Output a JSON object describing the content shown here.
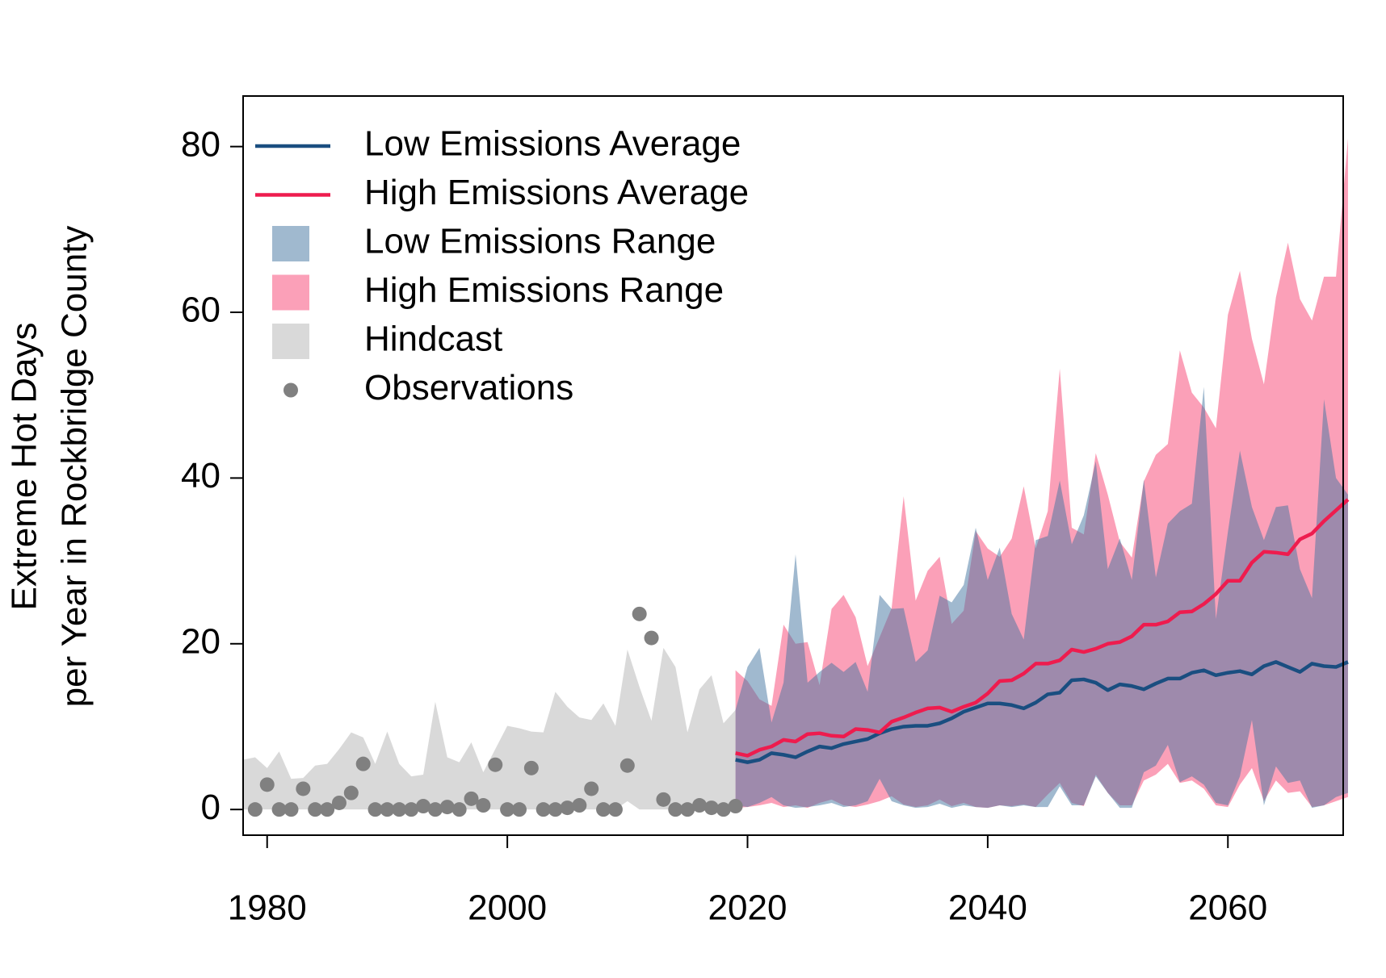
{
  "chart_data": {
    "type": "line",
    "ylabel": [
      "Extreme Hot Days",
      "per Year in Rockbridge County"
    ],
    "xlim": [
      1978,
      2069.6
    ],
    "ylim": [
      -3.1,
      86.1
    ],
    "xticks": [
      1980,
      2000,
      2020,
      2040,
      2060
    ],
    "yticks": [
      0,
      20,
      40,
      60,
      80
    ],
    "legend": "topleft",
    "series": [
      {
        "name": "Hindcast",
        "kind": "band",
        "color": "#d9d9d9",
        "x": [
          1978,
          1979,
          1980,
          1981,
          1982,
          1983,
          1984,
          1985,
          1986,
          1987,
          1988,
          1989,
          1990,
          1991,
          1992,
          1993,
          1994,
          1995,
          1996,
          1997,
          1998,
          1999,
          2000,
          2001,
          2002,
          2003,
          2004,
          2005,
          2006,
          2007,
          2008,
          2009,
          2010,
          2011,
          2012,
          2013,
          2014,
          2015,
          2016,
          2017,
          2018,
          2019
        ],
        "upper": [
          6,
          6.3,
          5,
          7,
          3.7,
          3.8,
          5.3,
          5.5,
          7.3,
          9.3,
          8.7,
          5.5,
          9.4,
          5.5,
          4,
          4.2,
          13,
          6.3,
          5.7,
          8.1,
          4.5,
          7.3,
          10.1,
          9.8,
          9.4,
          9.3,
          14.2,
          12.4,
          11.1,
          10.8,
          12.8,
          10.1,
          19.3,
          14.8,
          10.7,
          19.5,
          17.2,
          9.3,
          14.5,
          16.2,
          10.4,
          12
        ],
        "lower": [
          0,
          0,
          0,
          0,
          0,
          0,
          0,
          0,
          0,
          0,
          0,
          0,
          0,
          0,
          0,
          0,
          0,
          0,
          0,
          0,
          0,
          0,
          0,
          0,
          0,
          0,
          0,
          0,
          0,
          0,
          0,
          0,
          1,
          0,
          0,
          0,
          0,
          0,
          0,
          0,
          0,
          0
        ]
      },
      {
        "name": "High Emissions Range",
        "kind": "band",
        "color": "#fba0b8",
        "x": [
          2019,
          2020,
          2021,
          2022,
          2023,
          2024,
          2025,
          2026,
          2027,
          2028,
          2029,
          2030,
          2031,
          2032,
          2033,
          2034,
          2035,
          2036,
          2037,
          2038,
          2039,
          2040,
          2041,
          2042,
          2043,
          2044,
          2045,
          2046,
          2047,
          2048,
          2049,
          2050,
          2051,
          2052,
          2053,
          2054,
          2055,
          2056,
          2057,
          2058,
          2059,
          2060,
          2061,
          2062,
          2063,
          2064,
          2065,
          2066,
          2067,
          2068,
          2069,
          2070
        ],
        "upper": [
          16.8,
          15.5,
          13.3,
          12.5,
          22.3,
          20,
          20.2,
          15,
          24.2,
          25.9,
          23.2,
          17.3,
          20.8,
          24.3,
          37.8,
          25.2,
          28.8,
          30.5,
          22.4,
          24,
          33.6,
          31.5,
          30.5,
          32.7,
          39,
          31.5,
          36,
          53.2,
          34,
          33.2,
          43,
          38,
          32.3,
          30.4,
          39.6,
          42.8,
          44.1,
          55.4,
          50.3,
          48.5,
          46,
          59.7,
          65,
          56.8,
          51.3,
          61.8,
          68.4,
          61.6,
          59,
          64.3,
          64.3,
          81
        ],
        "lower": [
          0.2,
          0.3,
          0.5,
          0.8,
          0.3,
          0.5,
          0.2,
          0.8,
          1.2,
          0.5,
          0.3,
          0.6,
          1,
          1.6,
          0.6,
          0.3,
          0.5,
          1.2,
          0.4,
          0.8,
          0.3,
          0.2,
          0.5,
          0.4,
          0.6,
          0.3,
          1.8,
          3.2,
          0.8,
          0.4,
          4.2,
          2,
          0.5,
          0.5,
          3.5,
          4.2,
          5.5,
          3.2,
          3.5,
          2.5,
          0.5,
          0.3,
          3,
          5,
          1,
          3.5,
          2,
          2.2,
          0.3,
          0.5,
          1,
          1.5
        ]
      },
      {
        "name": "Low Emissions Range",
        "kind": "band",
        "color": "#41739f",
        "opacity": 0.5,
        "x": [
          2019,
          2020,
          2021,
          2022,
          2023,
          2024,
          2025,
          2026,
          2027,
          2028,
          2029,
          2030,
          2031,
          2032,
          2033,
          2034,
          2035,
          2036,
          2037,
          2038,
          2039,
          2040,
          2041,
          2042,
          2043,
          2044,
          2045,
          2046,
          2047,
          2048,
          2049,
          2050,
          2051,
          2052,
          2053,
          2054,
          2055,
          2056,
          2057,
          2058,
          2059,
          2060,
          2061,
          2062,
          2063,
          2064,
          2065,
          2066,
          2067,
          2068,
          2069,
          2070
        ],
        "upper": [
          12,
          17.2,
          19.5,
          10.5,
          15.3,
          30.8,
          15.3,
          16.6,
          17.7,
          16.6,
          17.8,
          14.2,
          25.9,
          24.2,
          24.3,
          17.8,
          19.2,
          25.8,
          25,
          27.1,
          34,
          27.7,
          31.6,
          23.6,
          20.5,
          32.5,
          33,
          39.7,
          32,
          35.5,
          42,
          29,
          32.7,
          27.7,
          39.8,
          28,
          34.5,
          36,
          36.9,
          51,
          23,
          33.5,
          43.3,
          36.5,
          32.5,
          36.5,
          36.7,
          29,
          25.5,
          49.5,
          40,
          38
        ],
        "lower": [
          0.5,
          0.3,
          0.8,
          1.5,
          0.5,
          0.2,
          0.3,
          0.5,
          0.8,
          0.3,
          0.5,
          1,
          3.7,
          1,
          0.5,
          0.2,
          0.3,
          0.7,
          0.2,
          0.5,
          0.3,
          0.2,
          0.5,
          0.3,
          0.5,
          0.3,
          0.3,
          2.8,
          0.5,
          0.5,
          4,
          2,
          0.2,
          0.2,
          4.5,
          5.3,
          7.8,
          3.3,
          4,
          3,
          0.8,
          0.5,
          4,
          10.8,
          0.5,
          5.2,
          3.2,
          3.5,
          0.2,
          0.5,
          1.5,
          2
        ]
      },
      {
        "name": "Low Emissions Average",
        "kind": "line",
        "color": "#1a4e80",
        "x": [
          2019,
          2020,
          2021,
          2022,
          2023,
          2024,
          2025,
          2026,
          2027,
          2028,
          2029,
          2030,
          2031,
          2032,
          2033,
          2034,
          2035,
          2036,
          2037,
          2038,
          2039,
          2040,
          2041,
          2042,
          2043,
          2044,
          2045,
          2046,
          2047,
          2048,
          2049,
          2050,
          2051,
          2052,
          2053,
          2054,
          2055,
          2056,
          2057,
          2058,
          2059,
          2060,
          2061,
          2062,
          2063,
          2064,
          2065,
          2066,
          2067,
          2068,
          2069,
          2070
        ],
        "values": [
          6,
          5.7,
          6,
          6.8,
          6.6,
          6.3,
          7,
          7.6,
          7.4,
          7.9,
          8.2,
          8.5,
          9.2,
          9.7,
          10,
          10.1,
          10.1,
          10.4,
          11,
          11.8,
          12.3,
          12.8,
          12.8,
          12.6,
          12.2,
          12.9,
          13.9,
          14.1,
          15.6,
          15.7,
          15.3,
          14.4,
          15.1,
          14.9,
          14.5,
          15.2,
          15.8,
          15.8,
          16.5,
          16.8,
          16.2,
          16.5,
          16.7,
          16.3,
          17.3,
          17.8,
          17.2,
          16.6,
          17.6,
          17.3,
          17.2,
          17.8
        ]
      },
      {
        "name": "High Emissions Average",
        "kind": "line",
        "color": "#ee1c4e",
        "x": [
          2019,
          2020,
          2021,
          2022,
          2023,
          2024,
          2025,
          2026,
          2027,
          2028,
          2029,
          2030,
          2031,
          2032,
          2033,
          2034,
          2035,
          2036,
          2037,
          2038,
          2039,
          2040,
          2041,
          2042,
          2043,
          2044,
          2045,
          2046,
          2047,
          2048,
          2049,
          2050,
          2051,
          2052,
          2053,
          2054,
          2055,
          2056,
          2057,
          2058,
          2059,
          2060,
          2061,
          2062,
          2063,
          2064,
          2065,
          2066,
          2067,
          2068,
          2069,
          2070
        ],
        "values": [
          6.8,
          6.5,
          7.2,
          7.6,
          8.4,
          8.2,
          9.1,
          9.2,
          8.9,
          8.8,
          9.7,
          9.6,
          9.3,
          10.6,
          11.1,
          11.7,
          12.2,
          12.3,
          11.8,
          12.4,
          12.9,
          14,
          15.5,
          15.6,
          16.4,
          17.6,
          17.6,
          18,
          19.3,
          19,
          19.4,
          20,
          20.2,
          20.9,
          22.3,
          22.3,
          22.7,
          23.8,
          23.9,
          24.8,
          26,
          27.6,
          27.6,
          29.8,
          31.1,
          31,
          30.8,
          32.6,
          33.3,
          34.8,
          36.1,
          37.4
        ]
      },
      {
        "name": "Observations",
        "kind": "points",
        "color": "#808080",
        "x": [
          1979,
          1980,
          1981,
          1982,
          1983,
          1984,
          1985,
          1986,
          1987,
          1988,
          1989,
          1990,
          1991,
          1992,
          1993,
          1994,
          1995,
          1996,
          1997,
          1998,
          1999,
          2000,
          2001,
          2002,
          2003,
          2004,
          2005,
          2006,
          2007,
          2008,
          2009,
          2010,
          2011,
          2012,
          2013,
          2014,
          2015,
          2016,
          2017,
          2018,
          2019
        ],
        "values": [
          0,
          3,
          0,
          0,
          2.5,
          0,
          0,
          0.8,
          2,
          5.5,
          0,
          0,
          0,
          0,
          0.4,
          0,
          0.3,
          0,
          1.3,
          0.5,
          5.4,
          0,
          0,
          5,
          0,
          0,
          0.2,
          0.5,
          2.5,
          0,
          0,
          5.3,
          23.6,
          20.7,
          1.2,
          0,
          0,
          0.5,
          0.2,
          0,
          0.4
        ]
      }
    ],
    "legend_order": [
      3,
      4,
      2,
      1,
      0,
      5
    ]
  }
}
